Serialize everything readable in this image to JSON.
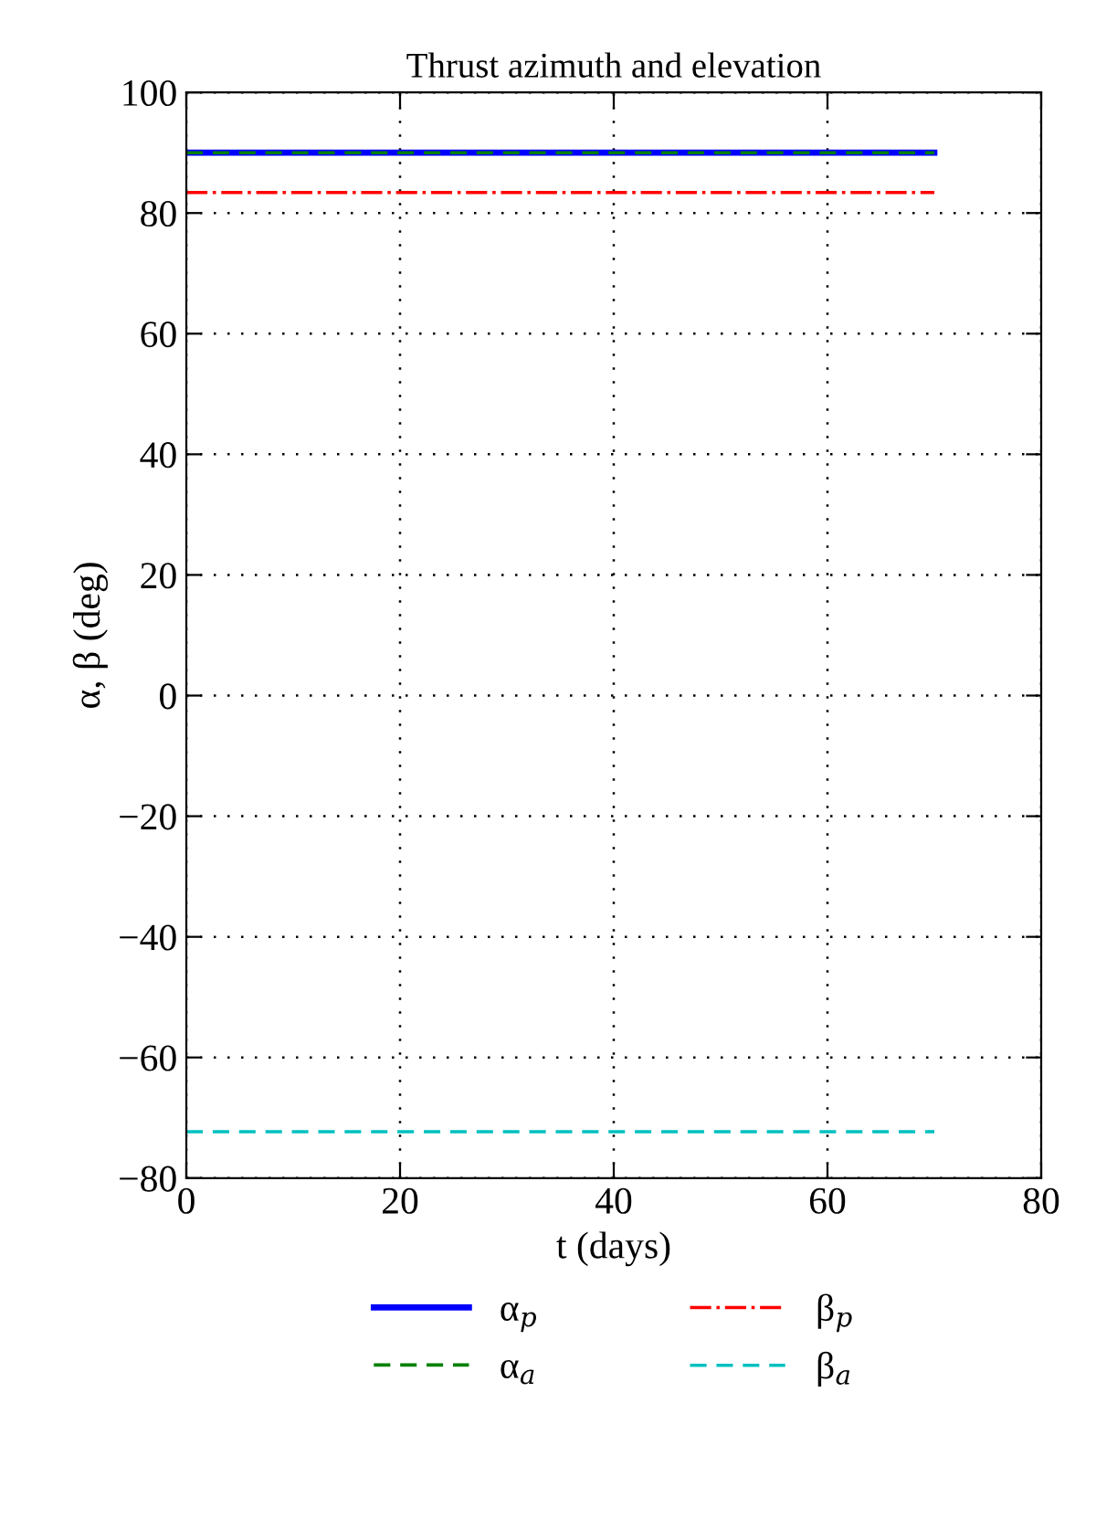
{
  "chart_data": {
    "type": "line",
    "title": "Thrust azimuth and elevation",
    "xlabel": "t (days)",
    "ylabel": "α, β (deg)",
    "x": [
      0,
      70
    ],
    "series": [
      {
        "name": "α$_{p}$",
        "color": "#0000ff",
        "values": [
          90,
          90
        ],
        "line_style": "solid"
      },
      {
        "name": "α$_{a}$",
        "color": "#008000",
        "values": [
          90,
          90
        ],
        "line_style": "dashed"
      },
      {
        "name": "β$_{p}$",
        "color": "#ff0000",
        "values": [
          83.4,
          83.4
        ],
        "line_style": "dashdot"
      },
      {
        "name": "β$_{a}$",
        "color": "#00bfbf",
        "values": [
          -72.3,
          -72.3
        ],
        "line_style": "dashed"
      }
    ],
    "xlim": [
      0,
      80
    ],
    "xticks": [
      0,
      20,
      40,
      60,
      80
    ],
    "ylim": [
      -80,
      100
    ],
    "yticks": [
      -80,
      -60,
      -40,
      -20,
      0,
      20,
      40,
      60,
      80,
      100
    ],
    "grid": true,
    "legend": "bottom",
    "marker": "none"
  }
}
